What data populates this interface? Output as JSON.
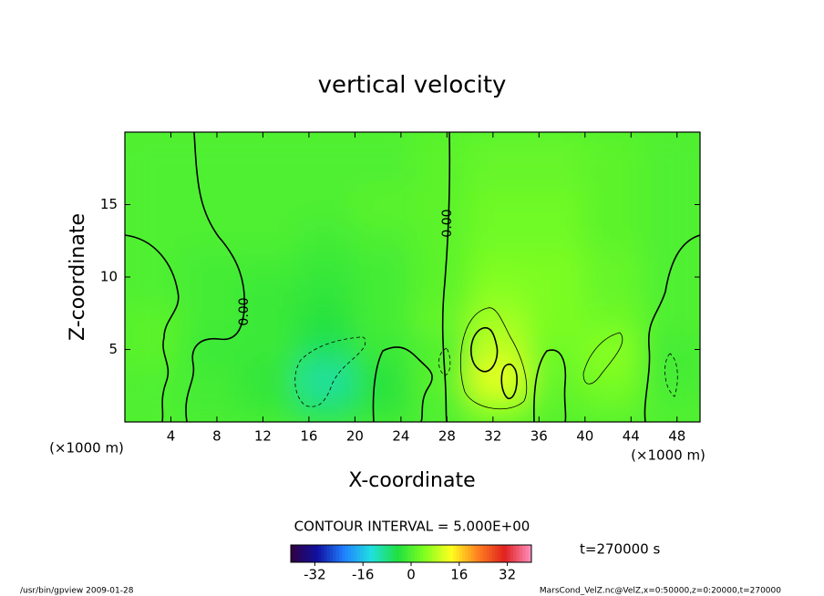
{
  "chart_data": {
    "type": "contour",
    "title": "vertical velocity",
    "x_label": "X-coordinate",
    "y_label": "Z-coordinate",
    "x_unit": "(×1000 m)",
    "xlim": [
      0,
      50
    ],
    "ylim": [
      0,
      20
    ],
    "xticks": [
      4,
      8,
      12,
      16,
      20,
      24,
      28,
      32,
      36,
      40,
      44,
      48
    ],
    "yticks": [
      5,
      10,
      15
    ],
    "x": [
      2.5,
      7.5,
      12.5,
      17.5,
      22.5,
      27.5,
      32.5,
      37.5,
      42.5,
      47.5
    ],
    "y": [
      1,
      3,
      5,
      7,
      9,
      11,
      13,
      15,
      17,
      19
    ],
    "z": [
      [
        0,
        -1,
        -2,
        -7,
        -3,
        0,
        6,
        1,
        2,
        0
      ],
      [
        0,
        -1,
        -3,
        -10,
        -4,
        1,
        12,
        2,
        4,
        -1
      ],
      [
        1,
        -2,
        -2,
        -6,
        -2,
        0,
        9,
        3,
        5,
        -1
      ],
      [
        1,
        -1,
        -2,
        -4,
        -1,
        2,
        7,
        4,
        3,
        0
      ],
      [
        0,
        -1,
        -2,
        -3,
        -1,
        1,
        5,
        4,
        2,
        0
      ],
      [
        0,
        -1,
        -1,
        -2,
        -1,
        1,
        4,
        4,
        2,
        0
      ],
      [
        0,
        0,
        0,
        -1,
        0,
        1,
        3,
        3,
        1,
        0
      ],
      [
        0,
        0,
        0,
        0,
        1,
        1,
        3,
        3,
        1,
        0
      ],
      [
        0,
        0,
        0,
        0,
        0,
        1,
        2,
        2,
        1,
        0
      ],
      [
        0,
        0,
        0,
        0,
        0,
        1,
        2,
        2,
        1,
        0
      ]
    ],
    "contour_label": "0.00",
    "contour_interval": "CONTOUR INTERVAL = 5.000E+00",
    "clim": [
      -40,
      40
    ],
    "cticks": [
      -32,
      -16,
      0,
      16,
      32
    ],
    "colormap": [
      "#300040",
      "#1010a0",
      "#2080ff",
      "#20e0e0",
      "#20e040",
      "#80ff20",
      "#ffff20",
      "#ff8020",
      "#e02020",
      "#ff90c0"
    ],
    "time_label": "t=270000 s",
    "footer_left": "/usr/bin/gpview   2009-01-28",
    "footer_right": "MarsCond_VelZ.nc@VelZ,x=0:50000,z=0:20000,t=270000"
  }
}
